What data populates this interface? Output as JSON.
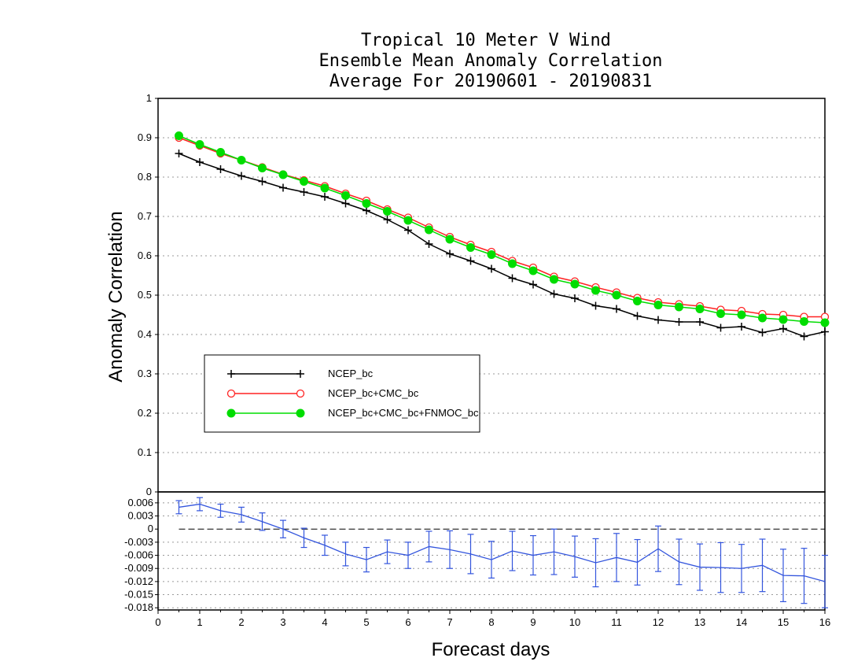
{
  "chart_data": [
    {
      "type": "line",
      "title": [
        "Tropical 10 Meter V Wind",
        "Ensemble Mean Anomaly Correlation",
        "Average For 20190601 - 20190831"
      ],
      "ylabel": "Anomaly Correlation",
      "ylim": [
        0,
        1
      ],
      "yticks": [
        "0",
        "0.1",
        "0.2",
        "0.3",
        "0.4",
        "0.5",
        "0.6",
        "0.7",
        "0.8",
        "0.9",
        "1"
      ],
      "grid": true,
      "legend_placement": "lower-left",
      "x": [
        0.5,
        1,
        1.5,
        2,
        2.5,
        3,
        3.5,
        4,
        4.5,
        5,
        5.5,
        6,
        6.5,
        7,
        7.5,
        8,
        8.5,
        9,
        9.5,
        10,
        10.5,
        11,
        11.5,
        12,
        12.5,
        13,
        13.5,
        14,
        14.5,
        15,
        15.5,
        16
      ],
      "series": [
        {
          "name": "NCEP_bc",
          "color": "#000000",
          "marker": "plus",
          "values": [
            0.86,
            0.838,
            0.82,
            0.803,
            0.789,
            0.773,
            0.762,
            0.75,
            0.733,
            0.715,
            0.692,
            0.665,
            0.63,
            0.605,
            0.587,
            0.567,
            0.543,
            0.527,
            0.503,
            0.492,
            0.473,
            0.465,
            0.447,
            0.437,
            0.432,
            0.432,
            0.417,
            0.42,
            0.405,
            0.415,
            0.395,
            0.407
          ]
        },
        {
          "name": "NCEP_bc+CMC_bc",
          "color": "#ff2222",
          "marker": "open-circle",
          "values": [
            0.9,
            0.88,
            0.86,
            0.843,
            0.825,
            0.807,
            0.792,
            0.777,
            0.758,
            0.74,
            0.718,
            0.697,
            0.672,
            0.648,
            0.628,
            0.61,
            0.587,
            0.57,
            0.547,
            0.535,
            0.52,
            0.507,
            0.493,
            0.482,
            0.477,
            0.472,
            0.463,
            0.46,
            0.452,
            0.45,
            0.445,
            0.445
          ]
        },
        {
          "name": "NCEP_bc+CMC_bc+FNMOC_bc",
          "color": "#00dd00",
          "marker": "filled-circle",
          "values": [
            0.905,
            0.883,
            0.863,
            0.843,
            0.823,
            0.806,
            0.789,
            0.772,
            0.753,
            0.733,
            0.713,
            0.69,
            0.666,
            0.642,
            0.621,
            0.603,
            0.58,
            0.562,
            0.54,
            0.528,
            0.512,
            0.5,
            0.485,
            0.475,
            0.47,
            0.465,
            0.453,
            0.45,
            0.442,
            0.438,
            0.433,
            0.43
          ]
        }
      ]
    },
    {
      "type": "line",
      "xlabel": "Forecast days",
      "xlim": [
        0,
        16
      ],
      "xticks": [
        "0",
        "1",
        "2",
        "3",
        "4",
        "5",
        "6",
        "7",
        "8",
        "9",
        "10",
        "11",
        "12",
        "13",
        "14",
        "15",
        "16"
      ],
      "ylim": [
        -0.0185,
        0.0085
      ],
      "yticks": [
        "0.006",
        "0.003",
        "0",
        "-0.003",
        "-0.006",
        "-0.009",
        "-0.012",
        "-0.015",
        "-0.018"
      ],
      "grid": true,
      "x": [
        0.5,
        1,
        1.5,
        2,
        2.5,
        3,
        3.5,
        4,
        4.5,
        5,
        5.5,
        6,
        6.5,
        7,
        7.5,
        8,
        8.5,
        9,
        9.5,
        10,
        10.5,
        11,
        11.5,
        12,
        12.5,
        13,
        13.5,
        14,
        14.5,
        15,
        15.5,
        16
      ],
      "series": [
        {
          "color": "#3355dd",
          "values": [
            0.005,
            0.0057,
            0.0042,
            0.0033,
            0.0017,
            0.0,
            -0.002,
            -0.0037,
            -0.0057,
            -0.007,
            -0.0052,
            -0.006,
            -0.004,
            -0.0047,
            -0.0057,
            -0.007,
            -0.005,
            -0.006,
            -0.0052,
            -0.0063,
            -0.0077,
            -0.0065,
            -0.0076,
            -0.0045,
            -0.0075,
            -0.0087,
            -0.0088,
            -0.009,
            -0.0083,
            -0.0106,
            -0.0107,
            -0.012
          ],
          "error": [
            0.0015,
            0.0015,
            0.0015,
            0.0017,
            0.002,
            0.002,
            0.0022,
            0.0023,
            0.0027,
            0.0028,
            0.0027,
            0.003,
            0.0035,
            0.0043,
            0.0045,
            0.0042,
            0.0045,
            0.0045,
            0.0052,
            0.0047,
            0.0055,
            0.0055,
            0.0052,
            0.0052,
            0.0052,
            0.0053,
            0.0057,
            0.0055,
            0.006,
            0.006,
            0.0063,
            0.006
          ]
        }
      ]
    }
  ]
}
